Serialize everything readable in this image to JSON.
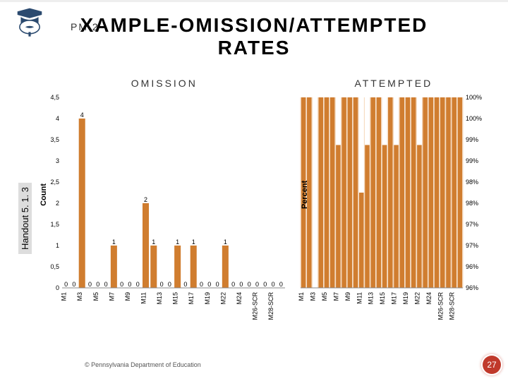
{
  "header": {
    "pm2": "PM 2",
    "title1": "XAMPLE-OMISSION/ATTEMPTED",
    "title2": "RATES"
  },
  "handout_label": "Handout 5. 1. 3",
  "copyright": "© Pennsylvania Department of Education",
  "page_no": "27",
  "omission_chart": {
    "title": "OMISSION",
    "ylabel": "Count",
    "ylim": [
      0,
      4.5
    ],
    "ytick_step": 0.5,
    "yticks": [
      "0",
      "0,5",
      "1",
      "1,5",
      "2",
      "2,5",
      "3",
      "3,5",
      "4",
      "4,5"
    ],
    "categories": [
      "M1",
      "M3",
      "M5",
      "M7",
      "M9",
      "M11",
      "M13",
      "M15",
      "M17",
      "M19",
      "M22",
      "M24",
      "M26-SCR",
      "M28-SCR"
    ],
    "values": [
      0,
      0,
      4,
      0,
      0,
      0,
      1,
      0,
      0,
      0,
      2,
      1,
      0,
      0,
      1,
      0,
      1,
      0,
      0,
      0,
      1,
      0,
      0,
      0,
      0,
      0,
      0,
      0
    ],
    "bar_color": "#d07d2f",
    "label_fontsize": 9,
    "tick_fontsize": 9,
    "title_fontsize": 14
  },
  "attempted_chart": {
    "title": "ATTEMPTED",
    "ylabel": "Percent",
    "ylim": [
      96,
      100
    ],
    "ytick_step": 1,
    "yticks": [
      "96%",
      "96%",
      "97%",
      "97%",
      "98%",
      "98%",
      "99%",
      "99%",
      "100%",
      "100%"
    ],
    "categories": [
      "M1",
      "M3",
      "M5",
      "M7",
      "M9",
      "M11",
      "M13",
      "M15",
      "M17",
      "M19",
      "M22",
      "M24",
      "M26-SCR",
      "M28-SCR"
    ],
    "values": [
      100,
      100,
      96,
      100,
      100,
      100,
      99,
      100,
      100,
      100,
      98,
      99,
      100,
      100,
      99,
      100,
      99,
      100,
      100,
      100,
      99,
      100,
      100,
      100,
      100,
      100,
      100,
      100
    ],
    "bar_color": "#d07d2f",
    "grid_color": "#f4d6b8",
    "label_fontsize": 9,
    "tick_fontsize": 9,
    "title_fontsize": 14
  },
  "colors": {
    "badge": "#c0392b",
    "bar": "#d07d2f",
    "grid": "#f4d6b8"
  }
}
